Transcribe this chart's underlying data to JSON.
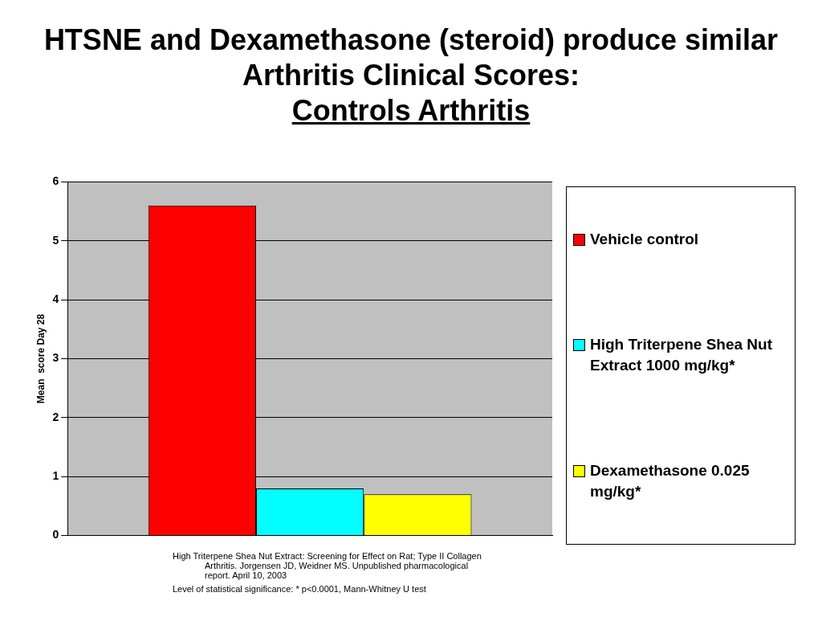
{
  "chart_data": {
    "type": "bar",
    "title": "HTSNE and Dexamethasone (steroid) produce similar Arthritis Clinical Scores:",
    "subtitle": "Controls Arthritis",
    "ylabel": "Mean  score Day 28",
    "categories": [
      null
    ],
    "series": [
      {
        "name": "Vehicle control",
        "color": "#ff0000",
        "values": [
          5.6
        ]
      },
      {
        "name": "High Triterpene Shea Nut Extract 1000 mg/kg*",
        "color": "#00ffff",
        "values": [
          0.8
        ]
      },
      {
        "name": "Dexamethasone 0.025 mg/kg*",
        "color": "#ffff00",
        "values": [
          0.7
        ]
      }
    ],
    "ylim": [
      0,
      6
    ],
    "yticks": [
      0,
      1,
      2,
      3,
      4,
      5,
      6
    ],
    "grid": "y",
    "legend": "right",
    "annotations": [
      "High Triterpene Shea Nut Extract: Screening for Effect on Rat; Type II Collagen Arthritis. Jorgensen JD, Weidner MS. Unpublished pharmacological report. April 10, 2003",
      "Level of statistical significance:  *  p<0.0001, Mann-Whitney U test"
    ]
  }
}
